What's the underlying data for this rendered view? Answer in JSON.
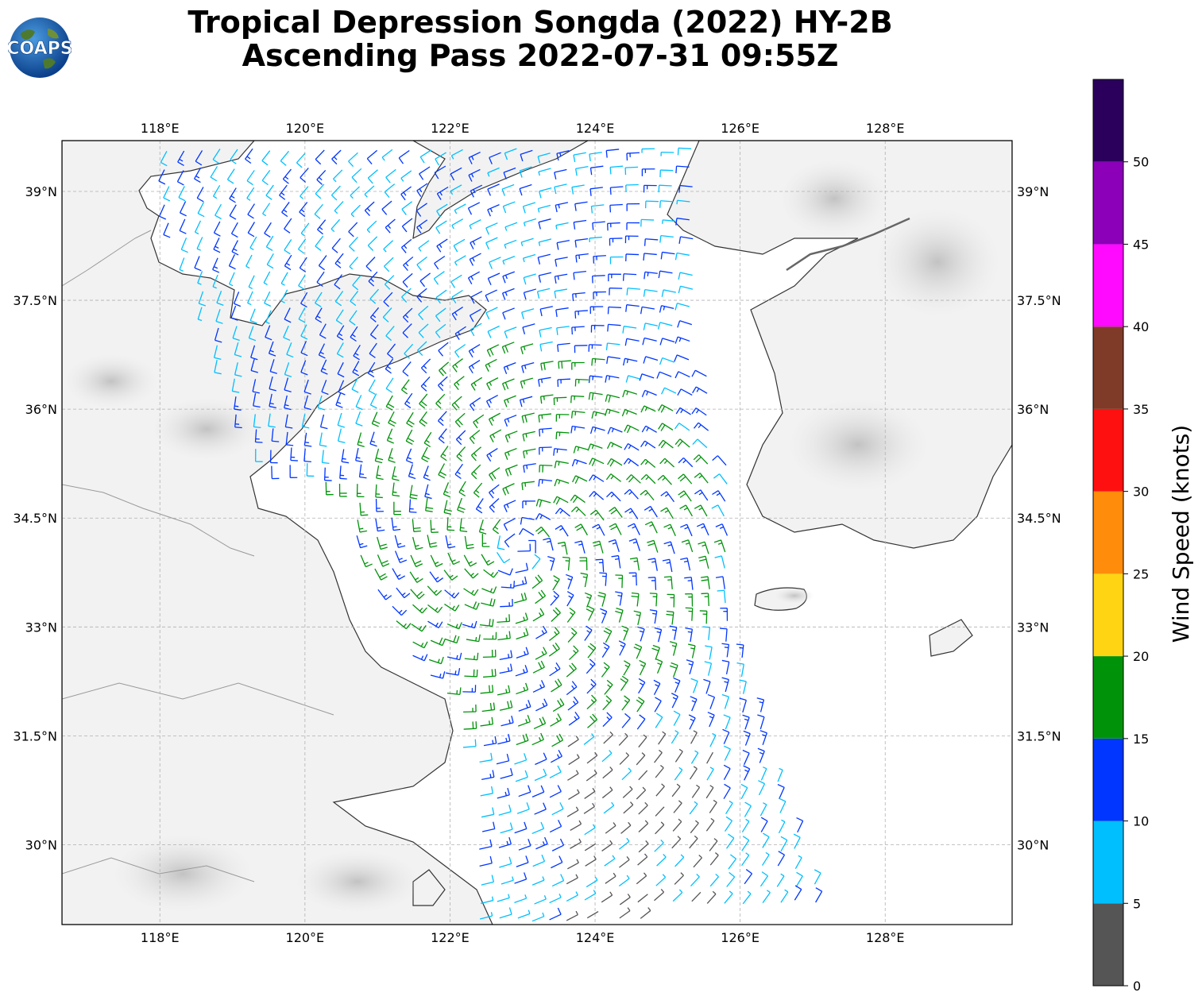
{
  "title": {
    "line1": "Tropical Depression Songda (2022) HY-2B",
    "line2": "Ascending Pass 2022-07-31 09:55Z"
  },
  "logo": {
    "text": "COAPS",
    "icon": "globe-icon"
  },
  "map": {
    "lon_range": [
      116.65,
      129.75
    ],
    "lat_range": [
      28.9,
      39.7
    ],
    "lon_ticks": [
      {
        "value": 118,
        "label": "118°E"
      },
      {
        "value": 120,
        "label": "120°E"
      },
      {
        "value": 122,
        "label": "122°E"
      },
      {
        "value": 124,
        "label": "124°E"
      },
      {
        "value": 126,
        "label": "126°E"
      },
      {
        "value": 128,
        "label": "128°E"
      }
    ],
    "lat_ticks": [
      {
        "value": 39,
        "label": "39°N"
      },
      {
        "value": 37.5,
        "label": "37.5°N"
      },
      {
        "value": 36,
        "label": "36°N"
      },
      {
        "value": 34.5,
        "label": "34.5°N"
      },
      {
        "value": 33,
        "label": "33°N"
      },
      {
        "value": 31.5,
        "label": "31.5°N"
      },
      {
        "value": 30,
        "label": "30°N"
      }
    ],
    "storm_center": {
      "lon": 122.95,
      "lat": 34.1
    },
    "grid": true
  },
  "colorbar": {
    "label": "Wind Speed (knots)",
    "ticks": [
      {
        "value": 0,
        "label": "0"
      },
      {
        "value": 5,
        "label": "5"
      },
      {
        "value": 10,
        "label": "10"
      },
      {
        "value": 15,
        "label": "15"
      },
      {
        "value": 20,
        "label": "20"
      },
      {
        "value": 25,
        "label": "25"
      },
      {
        "value": 30,
        "label": "30"
      },
      {
        "value": 35,
        "label": "35"
      },
      {
        "value": 40,
        "label": "40"
      },
      {
        "value": 45,
        "label": "45"
      },
      {
        "value": 50,
        "label": "50"
      }
    ],
    "bins": [
      {
        "from": 0,
        "to": 5,
        "color": "#555555"
      },
      {
        "from": 5,
        "to": 10,
        "color": "#00bfff"
      },
      {
        "from": 10,
        "to": 15,
        "color": "#0036ff"
      },
      {
        "from": 15,
        "to": 20,
        "color": "#00930a"
      },
      {
        "from": 20,
        "to": 25,
        "color": "#ffd513"
      },
      {
        "from": 25,
        "to": 30,
        "color": "#ff8c0a"
      },
      {
        "from": 30,
        "to": 35,
        "color": "#ff1010"
      },
      {
        "from": 35,
        "to": 40,
        "color": "#7f3b27"
      },
      {
        "from": 40,
        "to": 45,
        "color": "#ff0aff"
      },
      {
        "from": 45,
        "to": 50,
        "color": "#8b00b8"
      },
      {
        "from": 50,
        "to": 55,
        "color": "#2b005c"
      }
    ]
  },
  "colors": {
    "coastline": "#333333",
    "border": "#999999",
    "land_shade": "#e6e6e6",
    "grid": "#b0b0b0"
  }
}
